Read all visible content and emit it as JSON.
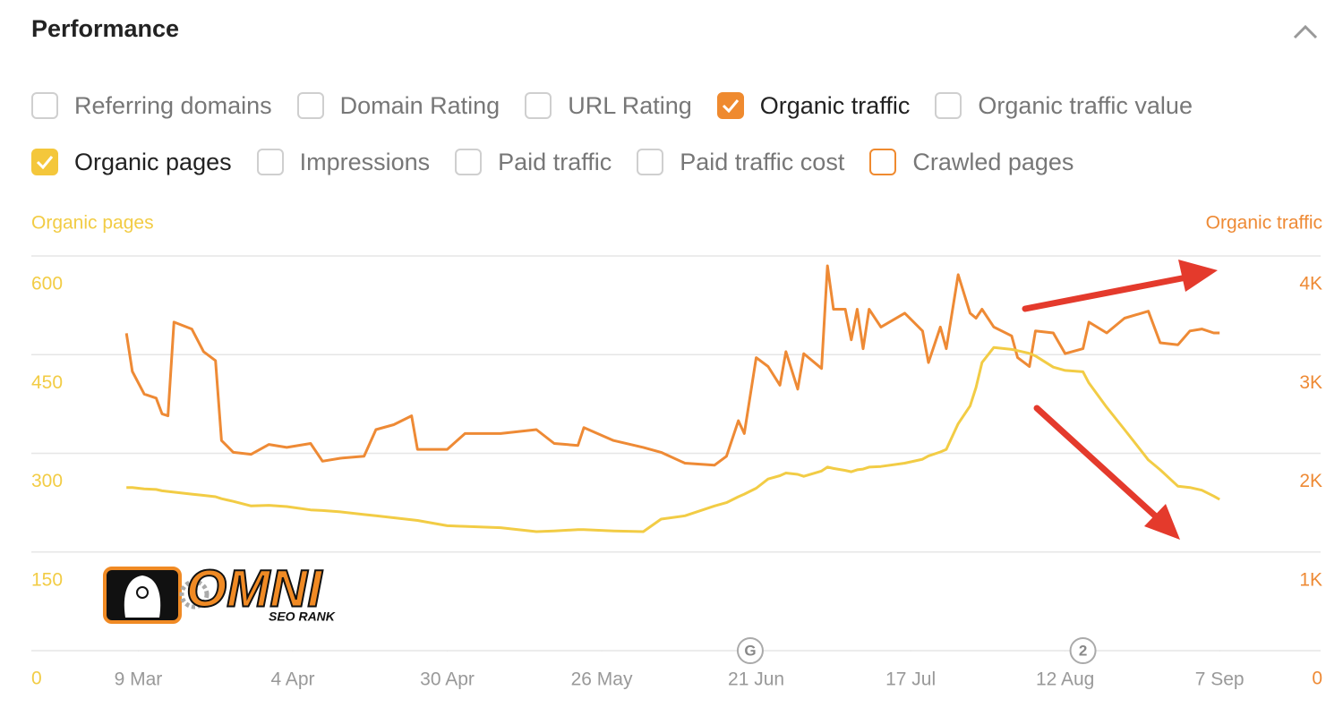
{
  "header": {
    "title": "Performance"
  },
  "metrics": [
    {
      "label": "Referring domains",
      "checked": false
    },
    {
      "label": "Domain Rating",
      "checked": false
    },
    {
      "label": "URL Rating",
      "checked": false
    },
    {
      "label": "Organic traffic",
      "checked": true,
      "color": "#ef8a2f"
    },
    {
      "label": "Organic traffic value",
      "checked": false
    },
    {
      "label": "Organic pages",
      "checked": true,
      "color": "#f4c73b"
    },
    {
      "label": "Impressions",
      "checked": false
    },
    {
      "label": "Paid traffic",
      "checked": false
    },
    {
      "label": "Paid traffic cost",
      "checked": false
    },
    {
      "label": "Crawled pages",
      "checked": false,
      "color": "#ef8a2f"
    }
  ],
  "chart_data": {
    "type": "line",
    "x": [
      "7 Mar",
      "8 Mar",
      "10 Mar",
      "12 Mar",
      "13 Mar",
      "14 Mar",
      "15 Mar",
      "18 Mar",
      "20 Mar",
      "22 Mar",
      "23 Mar",
      "25 Mar",
      "28 Mar",
      "31 Mar",
      "3 Apr",
      "7 Apr",
      "9 Apr",
      "12 Apr",
      "16 Apr",
      "18 Apr",
      "21 Apr",
      "24 Apr",
      "25 Apr",
      "30 Apr",
      "3 May",
      "9 May",
      "15 May",
      "18 May",
      "22 May",
      "23 May",
      "28 May",
      "2 Jun",
      "5 Jun",
      "9 Jun",
      "14 Jun",
      "16 Jun",
      "18 Jun",
      "19 Jun",
      "21 Jun",
      "23 Jun",
      "25 Jun",
      "26 Jun",
      "28 Jun",
      "29 Jun",
      "2 Jul",
      "3 Jul",
      "4 Jul",
      "6 Jul",
      "7 Jul",
      "8 Jul",
      "9 Jul",
      "10 Jul",
      "12 Jul",
      "16 Jul",
      "19 Jul",
      "20 Jul",
      "22 Jul",
      "23 Jul",
      "25 Jul",
      "27 Jul",
      "28 Jul",
      "29 Jul",
      "31 Jul",
      "3 Aug",
      "4 Aug",
      "6 Aug",
      "7 Aug",
      "10 Aug",
      "12 Aug",
      "15 Aug",
      "16 Aug",
      "19 Aug",
      "22 Aug",
      "26 Aug",
      "28 Aug",
      "31 Aug",
      "2 Sep",
      "4 Sep",
      "6 Sep",
      "7 Sep"
    ],
    "xlim": [
      "19 Feb",
      "24 Sep"
    ],
    "xticks": [
      "9 Mar",
      "4 Apr",
      "30 Apr",
      "26 May",
      "21 Jun",
      "17 Jul",
      "12 Aug",
      "7 Sep"
    ],
    "ylim": [
      0,
      600
    ],
    "yticks": [
      0,
      150,
      300,
      450,
      600
    ],
    "y2lim": [
      0,
      4000
    ],
    "y2ticks": [
      0,
      {
        "value": 1000,
        "label": "1K"
      },
      {
        "value": 2000,
        "label": "2K"
      },
      {
        "value": 3000,
        "label": "3K"
      },
      {
        "value": 4000,
        "label": "4K"
      }
    ],
    "grid": true,
    "series": [
      {
        "name": "Organic traffic",
        "color": "#ee8a35",
        "axis": "y2",
        "values": [
          3216,
          2830,
          2600,
          2560,
          2400,
          2380,
          3330,
          3260,
          3030,
          2940,
          2130,
          2010,
          1990,
          2090,
          2060,
          2100,
          1920,
          1950,
          1970,
          2240,
          2290,
          2380,
          2040,
          2040,
          2200,
          2200,
          2240,
          2100,
          2080,
          2260,
          2130,
          2060,
          2010,
          1900,
          1880,
          1970,
          2330,
          2200,
          2970,
          2880,
          2690,
          3030,
          2650,
          3010,
          2860,
          3900,
          3460,
          3460,
          3150,
          3460,
          3060,
          3460,
          3280,
          3420,
          3240,
          2920,
          3280,
          3060,
          3810,
          3420,
          3370,
          3460,
          3280,
          3190,
          2970,
          2880,
          3240,
          3220,
          3010,
          3060,
          3330,
          3220,
          3370,
          3440,
          3120,
          3100,
          3240,
          3260,
          3220,
          3220
        ]
      },
      {
        "name": "Organic pages",
        "color": "#f2cc45",
        "values": [
          248,
          248,
          246,
          245,
          243,
          242,
          241,
          238,
          236,
          234,
          231,
          227,
          220,
          221,
          219,
          214,
          213,
          211,
          207,
          205,
          202,
          199,
          198,
          190,
          189,
          187,
          181,
          182,
          184,
          184,
          182,
          181,
          200,
          205,
          220,
          225,
          234,
          238,
          247,
          261,
          266,
          270,
          268,
          265,
          273,
          279,
          277,
          274,
          272,
          275,
          276,
          279,
          280,
          285,
          291,
          296,
          302,
          306,
          345,
          372,
          400,
          438,
          461,
          458,
          456,
          452,
          448,
          431,
          426,
          424,
          407,
          370,
          336,
          290,
          275,
          250,
          248,
          244,
          235,
          230
        ]
      }
    ],
    "annotations": [
      {
        "label": "G",
        "x": "20 Jun"
      },
      {
        "label": "2",
        "x": "15 Aug"
      }
    ]
  },
  "watermark": {
    "text": "OMNI",
    "subtext": "SEO RANK"
  }
}
